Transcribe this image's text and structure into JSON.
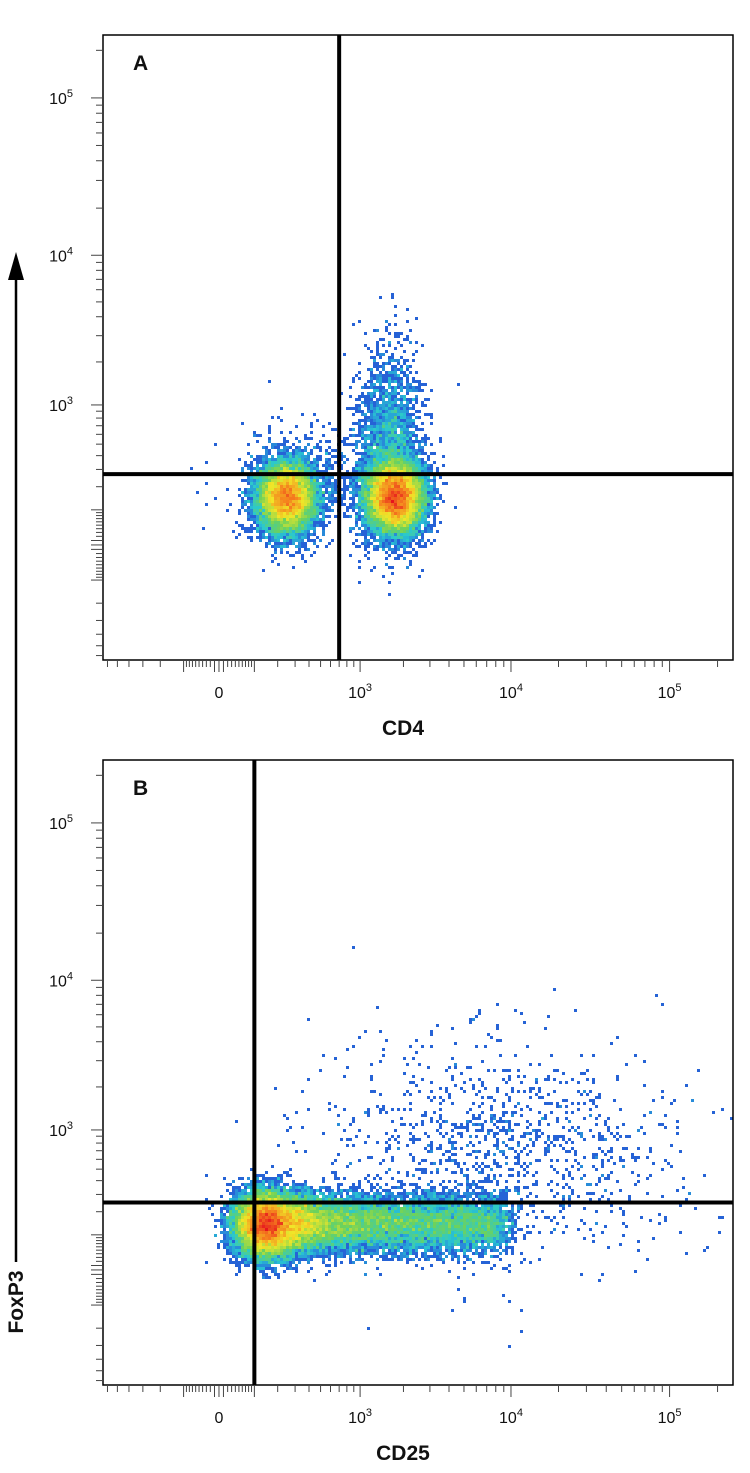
{
  "y_axis_title": "FoxP3",
  "chart_data": [
    {
      "type": "scatter",
      "subtype": "flow-cytometry-density-plot",
      "panel_label": "A",
      "xlabel": "CD4",
      "ylabel": "FoxP3",
      "x_scale": "biexponential",
      "y_scale": "biexponential",
      "x_ticks": [
        {
          "value": 0,
          "label": "0"
        },
        {
          "value": 1000,
          "label": "10",
          "exp": "3"
        },
        {
          "value": 10000,
          "label": "10",
          "exp": "4"
        },
        {
          "value": 100000,
          "label": "10",
          "exp": "5"
        }
      ],
      "y_ticks": [
        {
          "value": 1000,
          "label": "10",
          "exp": "3"
        },
        {
          "value": 10000,
          "label": "10",
          "exp": "4"
        },
        {
          "value": 100000,
          "label": "10",
          "exp": "5"
        }
      ],
      "quadrant_gate": {
        "x": 700,
        "y": 270
      },
      "populations": [
        {
          "x": 250,
          "y": 150,
          "spread_x": 0.09,
          "spread_y": 0.11,
          "weight": 1.0
        },
        {
          "x": 1750,
          "y": 150,
          "spread_x": 0.09,
          "spread_y": 0.11,
          "weight": 1.25
        },
        {
          "x": 1600,
          "y": 380,
          "spread_x": 0.1,
          "spread_y": 0.28,
          "weight": 0.22,
          "sparse": true
        },
        {
          "x": 450,
          "y": 170,
          "spread_x": 0.25,
          "spread_y": 0.15,
          "weight": 0.05,
          "sparse": true
        }
      ]
    },
    {
      "type": "scatter",
      "subtype": "flow-cytometry-density-plot",
      "panel_label": "B",
      "xlabel": "CD25",
      "ylabel": "FoxP3",
      "x_scale": "biexponential",
      "y_scale": "biexponential",
      "x_ticks": [
        {
          "value": 0,
          "label": "0"
        },
        {
          "value": 1000,
          "label": "10",
          "exp": "3"
        },
        {
          "value": 10000,
          "label": "10",
          "exp": "4"
        },
        {
          "value": 100000,
          "label": "10",
          "exp": "5"
        }
      ],
      "y_ticks": [
        {
          "value": 1000,
          "label": "10",
          "exp": "3"
        },
        {
          "value": 10000,
          "label": "10",
          "exp": "4"
        },
        {
          "value": 100000,
          "label": "10",
          "exp": "5"
        }
      ],
      "quadrant_gate": {
        "x": 100,
        "y": 250
      },
      "populations": [
        {
          "x": 150,
          "y": 140,
          "spread_x": 0.1,
          "spread_y": 0.1,
          "weight": 1.3
        },
        {
          "x": 900,
          "y": 145,
          "spread_x": 0.55,
          "spread_y": 0.09,
          "weight": 1.1,
          "uniform_x": [
            300,
            9000
          ]
        },
        {
          "x": 8000,
          "y": 500,
          "spread_x": 0.55,
          "spread_y": 0.35,
          "weight": 0.12,
          "sparse": true
        }
      ]
    }
  ]
}
